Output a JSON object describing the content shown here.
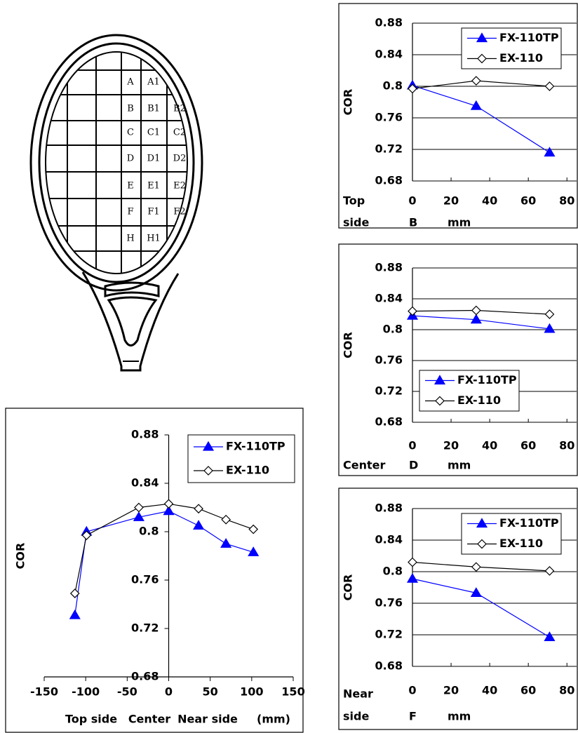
{
  "diagram": {
    "rows": [
      [
        "A",
        "A1"
      ],
      [
        "B",
        "B1",
        "B2"
      ],
      [
        "C",
        "C1",
        "C2"
      ],
      [
        "D",
        "D1",
        "D2"
      ],
      [
        "E",
        "E1",
        "E2"
      ],
      [
        "F",
        "F1",
        "F2"
      ],
      [
        "H",
        "H1"
      ]
    ]
  },
  "chart_data": [
    {
      "type": "line",
      "ylabel": "COR",
      "row_label": [
        "Top",
        "side"
      ],
      "position_label": "B",
      "unit_label": "mm",
      "x": [
        0,
        33,
        71
      ],
      "xlim": [
        0,
        85
      ],
      "xticks": [
        0,
        20,
        40,
        60,
        80
      ],
      "ylim": [
        0.68,
        0.88
      ],
      "yticks": [
        0.68,
        0.72,
        0.76,
        0.8,
        0.84,
        0.88
      ],
      "grid": true,
      "legend": "upper right",
      "series": [
        {
          "name": "FX-110TP",
          "color": "#0000ff",
          "marker": "triangle",
          "values": [
            0.801,
            0.775,
            0.716
          ]
        },
        {
          "name": "EX-110",
          "color": "#000000",
          "marker": "diamond",
          "values": [
            0.797,
            0.807,
            0.8
          ]
        }
      ]
    },
    {
      "type": "line",
      "ylabel": "COR",
      "row_label": [
        "Center"
      ],
      "position_label": "D",
      "unit_label": "mm",
      "x": [
        0,
        33,
        71
      ],
      "xlim": [
        0,
        85
      ],
      "xticks": [
        0,
        20,
        40,
        60,
        80
      ],
      "ylim": [
        0.68,
        0.88
      ],
      "yticks": [
        0.68,
        0.72,
        0.76,
        0.8,
        0.84,
        0.88
      ],
      "grid": true,
      "legend": "lower left",
      "series": [
        {
          "name": "FX-110TP",
          "color": "#0000ff",
          "marker": "triangle",
          "values": [
            0.818,
            0.813,
            0.801
          ]
        },
        {
          "name": "EX-110",
          "color": "#000000",
          "marker": "diamond",
          "values": [
            0.824,
            0.825,
            0.82
          ]
        }
      ]
    },
    {
      "type": "line",
      "ylabel": "COR",
      "row_label": [
        "Near",
        "side"
      ],
      "position_label": "F",
      "unit_label": "mm",
      "x": [
        0,
        33,
        71
      ],
      "xlim": [
        0,
        85
      ],
      "xticks": [
        0,
        20,
        40,
        60,
        80
      ],
      "ylim": [
        0.68,
        0.88
      ],
      "yticks": [
        0.68,
        0.72,
        0.76,
        0.8,
        0.84,
        0.88
      ],
      "grid": true,
      "legend": "upper right",
      "series": [
        {
          "name": "FX-110TP",
          "color": "#0000ff",
          "marker": "triangle",
          "values": [
            0.791,
            0.773,
            0.717
          ]
        },
        {
          "name": "EX-110",
          "color": "#000000",
          "marker": "diamond",
          "values": [
            0.812,
            0.806,
            0.801
          ]
        }
      ]
    },
    {
      "type": "line",
      "ylabel": "COR",
      "xlabel": [
        "Top side",
        "Center",
        "Near side",
        "(mm)"
      ],
      "x": [
        -113,
        -99,
        -36,
        0,
        36,
        69,
        102
      ],
      "xlim": [
        -150,
        150
      ],
      "xticks": [
        -150,
        -100,
        -50,
        0,
        50,
        100,
        150
      ],
      "ylim": [
        0.68,
        0.88
      ],
      "yticks": [
        0.68,
        0.72,
        0.76,
        0.8,
        0.84,
        0.88
      ],
      "grid": false,
      "legend": "upper right",
      "series": [
        {
          "name": "FX-110TP",
          "color": "#0000ff",
          "marker": "triangle",
          "values": [
            0.731,
            0.8,
            0.812,
            0.817,
            0.805,
            0.79,
            0.783
          ]
        },
        {
          "name": "EX-110",
          "color": "#000000",
          "marker": "diamond",
          "values": [
            0.749,
            0.797,
            0.82,
            0.823,
            0.819,
            0.81,
            0.802
          ]
        }
      ]
    }
  ]
}
